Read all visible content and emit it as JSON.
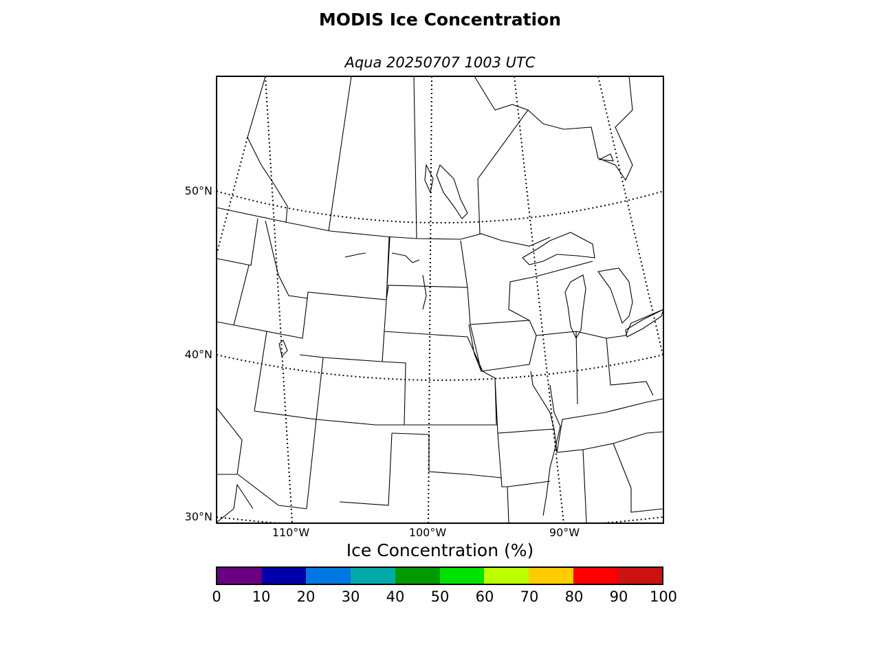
{
  "title": "MODIS Ice Concentration",
  "subtitle": "Aqua 20250707 1003 UTC",
  "map": {
    "lat_labels": [
      "50°N",
      "40°N",
      "30°N"
    ],
    "lon_labels": [
      "110°W",
      "100°W",
      "90°W"
    ],
    "outline_color": "#000000"
  },
  "colorbar": {
    "label": "Ice Concentration (%)",
    "ticks": [
      "0",
      "10",
      "20",
      "30",
      "40",
      "50",
      "60",
      "70",
      "80",
      "90",
      "100"
    ],
    "colors": [
      "#6a0080",
      "#0000aa",
      "#0077e0",
      "#00aaaa",
      "#009900",
      "#00e000",
      "#bbff00",
      "#ffcc00",
      "#ff0000",
      "#cc1111"
    ]
  }
}
